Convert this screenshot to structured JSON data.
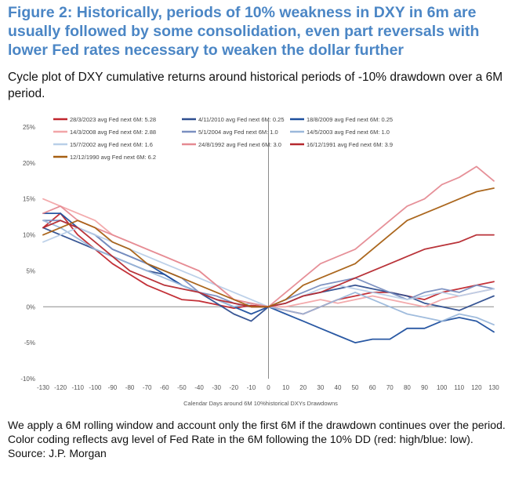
{
  "figure": {
    "title": "Figure 2: Historically, periods of 10% weakness in DXY in 6m are usually followed by some consolidation, even part reversals with lower Fed rates necessary to weaken the dollar further",
    "subtitle": "Cycle plot of DXY cumulative returns around historical periods of -10% drawdown over a 6M period."
  },
  "notes": {
    "line1": "We apply a 6M rolling window and account only the first 6M if the drawdown continues over the period.",
    "line2": "Color coding reflects avg level of Fed Rate in the 6M following the 10% DD (red: high/blue: low).",
    "source": "Source: J.P. Morgan"
  },
  "chart_data": {
    "type": "line",
    "xlabel": "Calendar Days around 6M 10%historical DXYs Drawdowns",
    "ylabel": "",
    "xlim": [
      -130,
      130
    ],
    "ylim": [
      -10,
      25
    ],
    "xticks": [
      -130,
      -120,
      -110,
      -100,
      -90,
      -80,
      -70,
      -60,
      -50,
      -40,
      -30,
      -20,
      -10,
      0,
      10,
      20,
      30,
      40,
      50,
      60,
      70,
      80,
      90,
      100,
      110,
      120,
      130
    ],
    "yticks": [
      -10,
      -5,
      0,
      5,
      10,
      15,
      20,
      25
    ],
    "ytick_labels": [
      "-10%",
      "-5%",
      "0%",
      "5%",
      "10%",
      "15%",
      "20%",
      "25%"
    ],
    "legend_position": "top",
    "series": [
      {
        "name": "28/3/2023 avg Fed next 6M: 5.28",
        "color": "#c0262d",
        "points": [
          [
            -130,
            11
          ],
          [
            -120,
            13
          ],
          [
            -110,
            10
          ],
          [
            -100,
            8
          ],
          [
            -90,
            6
          ],
          [
            -80,
            4.5
          ],
          [
            -70,
            3
          ],
          [
            -60,
            2
          ],
          [
            -50,
            1
          ],
          [
            -40,
            0.8
          ],
          [
            -30,
            0.3
          ],
          [
            -20,
            -0.2
          ],
          [
            -10,
            0.2
          ],
          [
            0,
            0
          ],
          [
            10,
            -0.5
          ],
          [
            20,
            -1
          ],
          [
            30,
            0
          ],
          [
            40,
            1
          ],
          [
            50,
            1.5
          ],
          [
            60,
            2
          ],
          [
            70,
            2
          ],
          [
            80,
            1.5
          ],
          [
            90,
            1
          ],
          [
            100,
            2
          ],
          [
            110,
            2.5
          ],
          [
            120,
            3
          ],
          [
            130,
            3.5
          ]
        ]
      },
      {
        "name": "4/11/2010 avg Fed next 6M: 0.25",
        "color": "#2e4e8f",
        "points": [
          [
            -130,
            11
          ],
          [
            -120,
            10
          ],
          [
            -110,
            9
          ],
          [
            -100,
            8
          ],
          [
            -90,
            7
          ],
          [
            -80,
            6
          ],
          [
            -70,
            5
          ],
          [
            -60,
            4.5
          ],
          [
            -50,
            3
          ],
          [
            -40,
            2
          ],
          [
            -30,
            0.5
          ],
          [
            -20,
            -1
          ],
          [
            -10,
            -2
          ],
          [
            0,
            0
          ],
          [
            10,
            0.5
          ],
          [
            20,
            1.5
          ],
          [
            30,
            2
          ],
          [
            40,
            2.5
          ],
          [
            50,
            3
          ],
          [
            60,
            2.5
          ],
          [
            70,
            2
          ],
          [
            80,
            1.5
          ],
          [
            90,
            0.5
          ],
          [
            100,
            0
          ],
          [
            110,
            -0.5
          ],
          [
            120,
            0.5
          ],
          [
            130,
            1.5
          ]
        ]
      },
      {
        "name": "18/8/2009 avg Fed next 6M: 0.25",
        "color": "#1d4f9e",
        "points": [
          [
            -130,
            13
          ],
          [
            -120,
            13
          ],
          [
            -110,
            11
          ],
          [
            -100,
            10
          ],
          [
            -90,
            8
          ],
          [
            -80,
            7
          ],
          [
            -70,
            6
          ],
          [
            -60,
            4.5
          ],
          [
            -50,
            3
          ],
          [
            -40,
            2
          ],
          [
            -30,
            1
          ],
          [
            -20,
            0
          ],
          [
            -10,
            -1
          ],
          [
            0,
            0
          ],
          [
            10,
            -1
          ],
          [
            20,
            -2
          ],
          [
            30,
            -3
          ],
          [
            40,
            -4
          ],
          [
            50,
            -5
          ],
          [
            60,
            -4.5
          ],
          [
            70,
            -4.5
          ],
          [
            80,
            -3
          ],
          [
            90,
            -3
          ],
          [
            100,
            -2
          ],
          [
            110,
            -1.5
          ],
          [
            120,
            -2
          ],
          [
            130,
            -3.5
          ]
        ]
      },
      {
        "name": "14/3/2008 avg Fed next 6M: 2.88",
        "color": "#f2a5a8",
        "points": [
          [
            -130,
            15
          ],
          [
            -120,
            14
          ],
          [
            -110,
            13
          ],
          [
            -100,
            12
          ],
          [
            -90,
            10
          ],
          [
            -80,
            9
          ],
          [
            -70,
            8
          ],
          [
            -60,
            7
          ],
          [
            -50,
            6
          ],
          [
            -40,
            5
          ],
          [
            -30,
            3
          ],
          [
            -20,
            1
          ],
          [
            -10,
            0.5
          ],
          [
            0,
            0
          ],
          [
            10,
            0
          ],
          [
            20,
            0.5
          ],
          [
            30,
            1
          ],
          [
            40,
            0.5
          ],
          [
            50,
            1
          ],
          [
            60,
            1.5
          ],
          [
            70,
            1
          ],
          [
            80,
            0.5
          ],
          [
            90,
            0
          ],
          [
            100,
            1
          ],
          [
            110,
            1.5
          ],
          [
            120,
            2
          ],
          [
            130,
            2.5
          ]
        ]
      },
      {
        "name": "5/1/2004 avg Fed next 6M: 1.0",
        "color": "#7a8fc0",
        "points": [
          [
            -130,
            12
          ],
          [
            -120,
            12
          ],
          [
            -110,
            11
          ],
          [
            -100,
            10
          ],
          [
            -90,
            8
          ],
          [
            -80,
            7
          ],
          [
            -70,
            6
          ],
          [
            -60,
            5
          ],
          [
            -50,
            4
          ],
          [
            -40,
            2
          ],
          [
            -30,
            1.5
          ],
          [
            -20,
            0.5
          ],
          [
            -10,
            0
          ],
          [
            0,
            0
          ],
          [
            10,
            1
          ],
          [
            20,
            2
          ],
          [
            30,
            3
          ],
          [
            40,
            3.5
          ],
          [
            50,
            4
          ],
          [
            60,
            3
          ],
          [
            70,
            2
          ],
          [
            80,
            1
          ],
          [
            90,
            2
          ],
          [
            100,
            2.5
          ],
          [
            110,
            2
          ],
          [
            120,
            3
          ],
          [
            130,
            2.5
          ]
        ]
      },
      {
        "name": "14/5/2003 avg Fed next 6M: 1.0",
        "color": "#9bb8db",
        "points": [
          [
            -130,
            12
          ],
          [
            -120,
            11
          ],
          [
            -110,
            9.5
          ],
          [
            -100,
            8
          ],
          [
            -90,
            7
          ],
          [
            -80,
            6
          ],
          [
            -70,
            5
          ],
          [
            -60,
            4
          ],
          [
            -50,
            3
          ],
          [
            -40,
            2
          ],
          [
            -30,
            1
          ],
          [
            -20,
            0
          ],
          [
            -10,
            0.5
          ],
          [
            0,
            0
          ],
          [
            10,
            -0.5
          ],
          [
            20,
            -1
          ],
          [
            30,
            0
          ],
          [
            40,
            1
          ],
          [
            50,
            2
          ],
          [
            60,
            1
          ],
          [
            70,
            0
          ],
          [
            80,
            -1
          ],
          [
            90,
            -1.5
          ],
          [
            100,
            -2
          ],
          [
            110,
            -1
          ],
          [
            120,
            -1.5
          ],
          [
            130,
            -2.5
          ]
        ]
      },
      {
        "name": "15/7/2002 avg Fed next 6M: 1.6",
        "color": "#b9cfe8",
        "points": [
          [
            -130,
            9
          ],
          [
            -120,
            10
          ],
          [
            -110,
            11
          ],
          [
            -100,
            10
          ],
          [
            -90,
            9
          ],
          [
            -80,
            8
          ],
          [
            -70,
            7
          ],
          [
            -60,
            6
          ],
          [
            -50,
            5
          ],
          [
            -40,
            4
          ],
          [
            -30,
            3
          ],
          [
            -20,
            2
          ],
          [
            -10,
            1
          ],
          [
            0,
            0
          ],
          [
            10,
            0.5
          ],
          [
            20,
            1.5
          ],
          [
            30,
            2.5
          ],
          [
            40,
            3
          ],
          [
            50,
            2.5
          ],
          [
            60,
            2
          ],
          [
            70,
            1.5
          ],
          [
            80,
            1
          ],
          [
            90,
            1.5
          ],
          [
            100,
            2
          ],
          [
            110,
            1.5
          ],
          [
            120,
            2
          ],
          [
            130,
            2.5
          ]
        ]
      },
      {
        "name": "24/8/1992 avg Fed next 6M: 3.0",
        "color": "#e58a92",
        "points": [
          [
            -130,
            13
          ],
          [
            -120,
            14
          ],
          [
            -110,
            12
          ],
          [
            -100,
            11
          ],
          [
            -90,
            10
          ],
          [
            -80,
            9
          ],
          [
            -70,
            8
          ],
          [
            -60,
            7
          ],
          [
            -50,
            6
          ],
          [
            -40,
            5
          ],
          [
            -30,
            3
          ],
          [
            -20,
            1
          ],
          [
            -10,
            0.5
          ],
          [
            0,
            0
          ],
          [
            10,
            2
          ],
          [
            20,
            4
          ],
          [
            30,
            6
          ],
          [
            40,
            7
          ],
          [
            50,
            8
          ],
          [
            60,
            10
          ],
          [
            70,
            12
          ],
          [
            80,
            14
          ],
          [
            90,
            15
          ],
          [
            100,
            17
          ],
          [
            110,
            18
          ],
          [
            120,
            19.5
          ],
          [
            130,
            17.5
          ]
        ]
      },
      {
        "name": "16/12/1991 avg Fed next 6M: 3.9",
        "color": "#b5282e",
        "points": [
          [
            -130,
            11
          ],
          [
            -120,
            12
          ],
          [
            -110,
            11
          ],
          [
            -100,
            9
          ],
          [
            -90,
            7
          ],
          [
            -80,
            5
          ],
          [
            -70,
            4
          ],
          [
            -60,
            3
          ],
          [
            -50,
            2.5
          ],
          [
            -40,
            2
          ],
          [
            -30,
            1
          ],
          [
            -20,
            0.5
          ],
          [
            -10,
            0
          ],
          [
            0,
            0
          ],
          [
            10,
            0.5
          ],
          [
            20,
            1.5
          ],
          [
            30,
            2
          ],
          [
            40,
            3
          ],
          [
            50,
            4
          ],
          [
            60,
            5
          ],
          [
            70,
            6
          ],
          [
            80,
            7
          ],
          [
            90,
            8
          ],
          [
            100,
            8.5
          ],
          [
            110,
            9
          ],
          [
            120,
            10
          ],
          [
            130,
            10
          ]
        ]
      },
      {
        "name": "12/12/1990 avg Fed next 6M: 6.2",
        "color": "#a65f12",
        "points": [
          [
            -130,
            10
          ],
          [
            -120,
            11
          ],
          [
            -110,
            12
          ],
          [
            -100,
            11
          ],
          [
            -90,
            9
          ],
          [
            -80,
            8
          ],
          [
            -70,
            6
          ],
          [
            -60,
            5
          ],
          [
            -50,
            4
          ],
          [
            -40,
            3
          ],
          [
            -30,
            2
          ],
          [
            -20,
            1
          ],
          [
            -10,
            0
          ],
          [
            0,
            0
          ],
          [
            10,
            1
          ],
          [
            20,
            3
          ],
          [
            30,
            4
          ],
          [
            40,
            5
          ],
          [
            50,
            6
          ],
          [
            60,
            8
          ],
          [
            70,
            10
          ],
          [
            80,
            12
          ],
          [
            90,
            13
          ],
          [
            100,
            14
          ],
          [
            110,
            15
          ],
          [
            120,
            16
          ],
          [
            130,
            16.5
          ]
        ]
      }
    ]
  }
}
